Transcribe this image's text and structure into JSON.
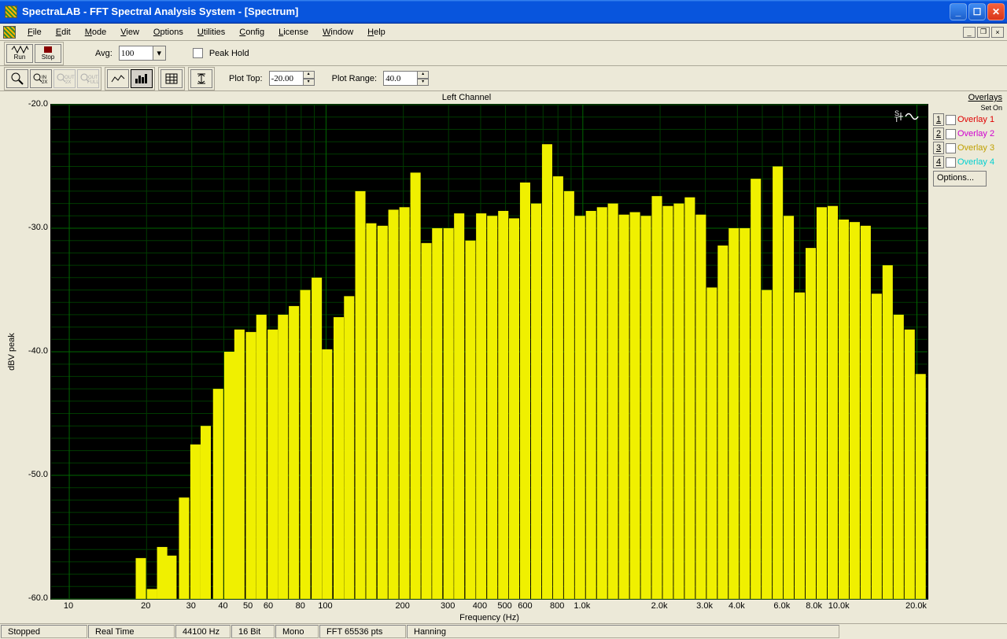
{
  "window": {
    "title": "SpectraLAB - FFT Spectral Analysis System - [Spectrum]"
  },
  "menu": [
    "File",
    "Edit",
    "Mode",
    "View",
    "Options",
    "Utilities",
    "Config",
    "License",
    "Window",
    "Help"
  ],
  "toolbar1": {
    "run": "Run",
    "stop": "Stop",
    "avg_label": "Avg:",
    "avg_value": "100",
    "peak_hold": "Peak Hold"
  },
  "toolbar2": {
    "plotTopLabel": "Plot Top:",
    "plotTop": "-20.00",
    "plotRangeLabel": "Plot Range:",
    "plotRange": "40.0"
  },
  "chart": {
    "title": "Left Channel",
    "ylabel": "dBV peak",
    "xlabel": "Frequency (Hz)",
    "yticks": [
      -20.0,
      -30.0,
      -40.0,
      -50.0,
      -60.0
    ],
    "ylim": [
      -60.0,
      -20.0
    ],
    "xticks": [
      {
        "v": 10,
        "l": "10"
      },
      {
        "v": 20,
        "l": "20"
      },
      {
        "v": 30,
        "l": "30"
      },
      {
        "v": 40,
        "l": "40"
      },
      {
        "v": 50,
        "l": "50"
      },
      {
        "v": 60,
        "l": "60"
      },
      {
        "v": 80,
        "l": "80"
      },
      {
        "v": 100,
        "l": "100"
      },
      {
        "v": 200,
        "l": "200"
      },
      {
        "v": 300,
        "l": "300"
      },
      {
        "v": 400,
        "l": "400"
      },
      {
        "v": 500,
        "l": "500"
      },
      {
        "v": 600,
        "l": "600"
      },
      {
        "v": 800,
        "l": "800"
      },
      {
        "v": 1000,
        "l": "1.0k"
      },
      {
        "v": 2000,
        "l": "2.0k"
      },
      {
        "v": 3000,
        "l": "3.0k"
      },
      {
        "v": 4000,
        "l": "4.0k"
      },
      {
        "v": 6000,
        "l": "6.0k"
      },
      {
        "v": 8000,
        "l": "8.0k"
      },
      {
        "v": 10000,
        "l": "10.0k"
      },
      {
        "v": 20000,
        "l": "20.0k"
      }
    ],
    "xlim": [
      8.5,
      22000
    ],
    "xscale": "log",
    "bg": "#000000",
    "grid_major": "#006600",
    "grid_minor": "#003b00",
    "bar_color": "#f0f000",
    "bars": [
      {
        "f": 19,
        "db": -56.7
      },
      {
        "f": 21,
        "db": -59.2
      },
      {
        "f": 23,
        "db": -55.8
      },
      {
        "f": 25,
        "db": -56.5
      },
      {
        "f": 28,
        "db": -51.8
      },
      {
        "f": 31,
        "db": -47.5
      },
      {
        "f": 34,
        "db": -46.0
      },
      {
        "f": 38,
        "db": -43.0
      },
      {
        "f": 42,
        "db": -40.0
      },
      {
        "f": 46,
        "db": -38.2
      },
      {
        "f": 51,
        "db": -38.4
      },
      {
        "f": 56,
        "db": -37.0
      },
      {
        "f": 62,
        "db": -38.2
      },
      {
        "f": 68,
        "db": -37.0
      },
      {
        "f": 75,
        "db": -36.3
      },
      {
        "f": 83,
        "db": -35.0
      },
      {
        "f": 92,
        "db": -34.0
      },
      {
        "f": 101,
        "db": -39.8
      },
      {
        "f": 112,
        "db": -37.2
      },
      {
        "f": 123,
        "db": -35.5
      },
      {
        "f": 136,
        "db": -27.0
      },
      {
        "f": 150,
        "db": -29.6
      },
      {
        "f": 166,
        "db": -29.8
      },
      {
        "f": 183,
        "db": -28.5
      },
      {
        "f": 202,
        "db": -28.3
      },
      {
        "f": 223,
        "db": -25.5
      },
      {
        "f": 246,
        "db": -31.2
      },
      {
        "f": 271,
        "db": -30.0
      },
      {
        "f": 300,
        "db": -30.0
      },
      {
        "f": 330,
        "db": -28.8
      },
      {
        "f": 365,
        "db": -31.0
      },
      {
        "f": 402,
        "db": -28.8
      },
      {
        "f": 444,
        "db": -29.0
      },
      {
        "f": 490,
        "db": -28.6
      },
      {
        "f": 540,
        "db": -29.2
      },
      {
        "f": 596,
        "db": -26.3
      },
      {
        "f": 658,
        "db": -28.0
      },
      {
        "f": 726,
        "db": -23.2
      },
      {
        "f": 801,
        "db": -25.8
      },
      {
        "f": 884,
        "db": -27.0
      },
      {
        "f": 975,
        "db": -29.0
      },
      {
        "f": 1076,
        "db": -28.6
      },
      {
        "f": 1188,
        "db": -28.3
      },
      {
        "f": 1310,
        "db": -28.0
      },
      {
        "f": 1446,
        "db": -28.9
      },
      {
        "f": 1596,
        "db": -28.7
      },
      {
        "f": 1761,
        "db": -29.0
      },
      {
        "f": 1943,
        "db": -27.4
      },
      {
        "f": 2144,
        "db": -28.2
      },
      {
        "f": 2366,
        "db": -28.0
      },
      {
        "f": 2611,
        "db": -27.5
      },
      {
        "f": 2882,
        "db": -28.9
      },
      {
        "f": 3180,
        "db": -34.8
      },
      {
        "f": 3509,
        "db": -31.4
      },
      {
        "f": 3872,
        "db": -30.0
      },
      {
        "f": 4273,
        "db": -30.0
      },
      {
        "f": 4716,
        "db": -26.0
      },
      {
        "f": 5204,
        "db": -35.0
      },
      {
        "f": 5743,
        "db": -25.0
      },
      {
        "f": 6337,
        "db": -29.0
      },
      {
        "f": 6994,
        "db": -35.2
      },
      {
        "f": 7718,
        "db": -31.6
      },
      {
        "f": 8517,
        "db": -28.3
      },
      {
        "f": 9399,
        "db": -28.2
      },
      {
        "f": 10373,
        "db": -29.3
      },
      {
        "f": 11447,
        "db": -29.5
      },
      {
        "f": 12632,
        "db": -29.8
      },
      {
        "f": 13940,
        "db": -35.3
      },
      {
        "f": 15384,
        "db": -33.0
      },
      {
        "f": 16978,
        "db": -37.0
      },
      {
        "f": 18736,
        "db": -38.2
      },
      {
        "f": 20677,
        "db": -41.8
      }
    ]
  },
  "overlays": {
    "header": "Overlays",
    "sub": [
      "Set",
      "On"
    ],
    "rows": [
      {
        "n": "1",
        "label": "Overlay 1",
        "color": "#e00000"
      },
      {
        "n": "2",
        "label": "Overlay 2",
        "color": "#d000d0"
      },
      {
        "n": "3",
        "label": "Overlay 3",
        "color": "#c0a000"
      },
      {
        "n": "4",
        "label": "Overlay 4",
        "color": "#00d0d0"
      }
    ],
    "options": "Options..."
  },
  "status": [
    "Stopped",
    "Real Time",
    "44100 Hz",
    "16 Bit",
    "Mono",
    "FFT 65536 pts",
    "Hanning"
  ]
}
